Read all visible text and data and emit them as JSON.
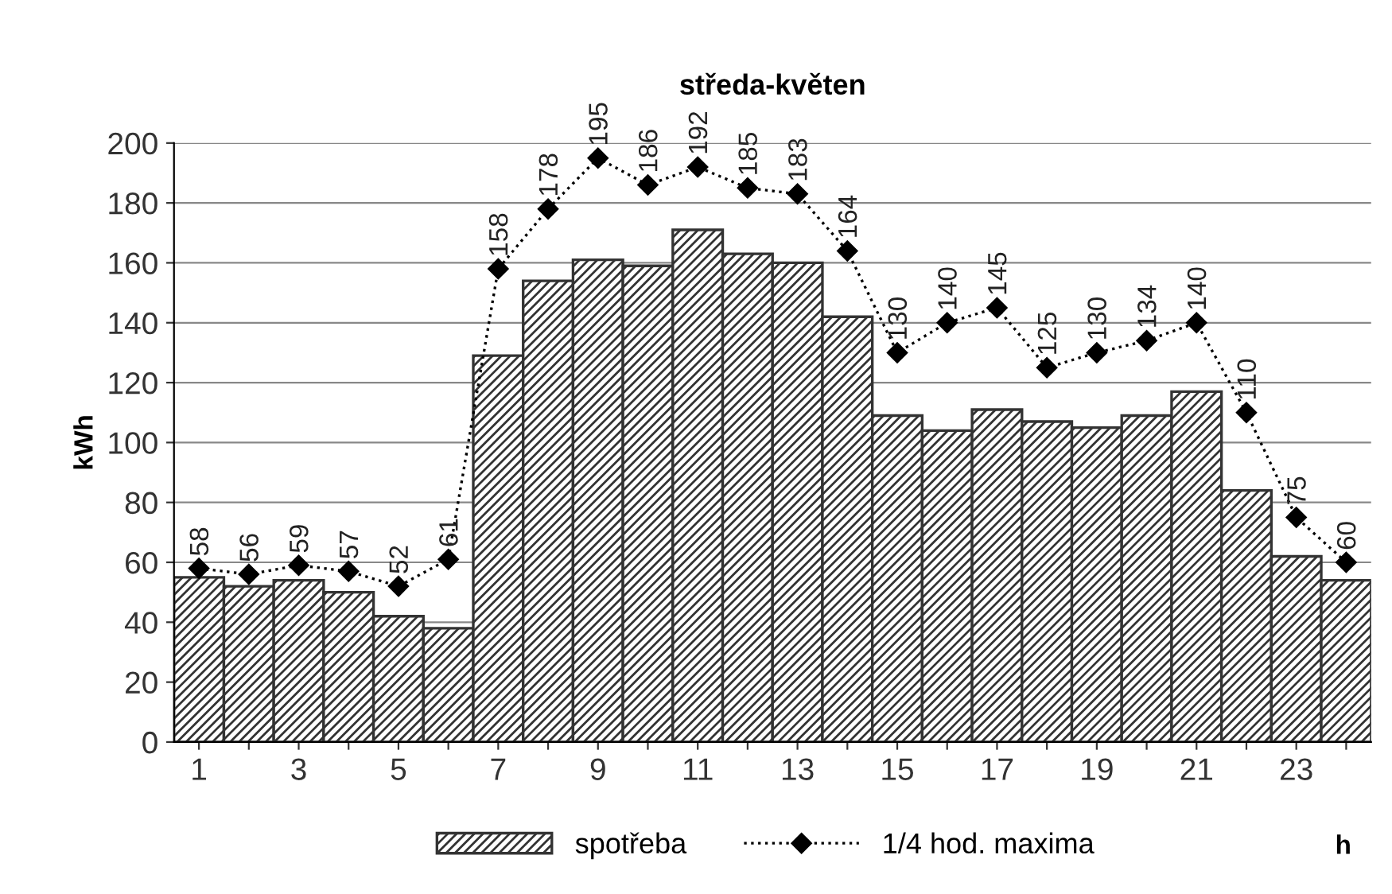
{
  "chart_data": {
    "type": "bar",
    "title": "středa-květen",
    "xlabel": "h",
    "ylabel": "kWh",
    "categories": [
      "1",
      null,
      "3",
      null,
      "5",
      null,
      "7",
      null,
      "9",
      null,
      "11",
      null,
      "13",
      null,
      "15",
      null,
      "17",
      null,
      "19",
      null,
      "21",
      null,
      "23",
      null
    ],
    "series": [
      {
        "name": "spotřeba",
        "color": "#333333",
        "values": [
          55,
          52,
          54,
          50,
          42,
          38,
          129,
          154,
          161,
          159,
          171,
          163,
          160,
          142,
          109,
          104,
          111,
          107,
          105,
          109,
          117,
          84,
          62,
          54
        ]
      },
      {
        "name": "1/4 hod. maxima",
        "type": "line",
        "color": "#000000",
        "marker": "diamond",
        "line_style": "dotted",
        "data_labels": true,
        "values": [
          58,
          56,
          59,
          57,
          52,
          61,
          158,
          178,
          195,
          186,
          192,
          185,
          183,
          164,
          130,
          140,
          145,
          125,
          130,
          134,
          140,
          110,
          75,
          60
        ]
      }
    ],
    "ylim": [
      0,
      200
    ],
    "yticks": [
      0,
      20,
      40,
      60,
      80,
      100,
      120,
      140,
      160,
      180,
      200
    ],
    "grid": "y",
    "legend": "bottom"
  }
}
